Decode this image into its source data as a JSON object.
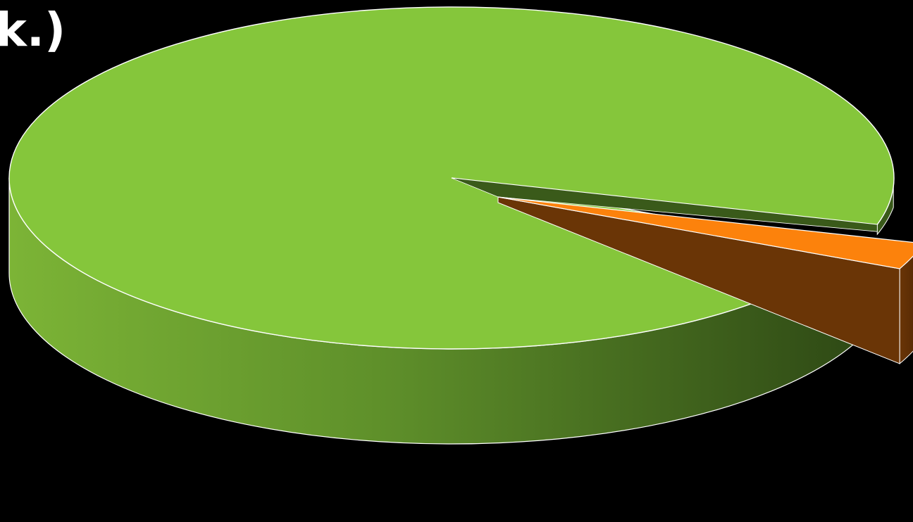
{
  "title": "k.)",
  "colors": {
    "background": "#000000",
    "edge": "#ffffff"
  },
  "chart_data": {
    "type": "pie",
    "style": "3d-exploded",
    "slices": [
      {
        "value": 95,
        "color_top": "#85c63b",
        "color_side_light": "#7cb436",
        "color_side_dark": "#2f4a15",
        "exploded": false
      },
      {
        "value": 5,
        "color_top": "#fc820c",
        "color_side_light": "#6a3506",
        "color_side_dark": "#4d2504",
        "exploded": true
      }
    ]
  }
}
